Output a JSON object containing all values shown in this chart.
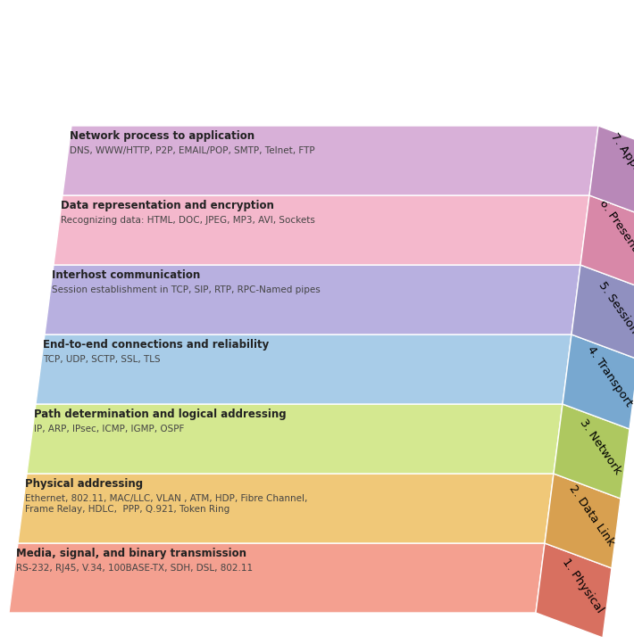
{
  "layers": [
    {
      "number": 1,
      "name": "Physical",
      "title": "Media, signal, and binary transmission",
      "subtitle": "RS-232, RJ45, V.34, 100BASE-TX, SDH, DSL, 802.11",
      "face_color": "#f4a090",
      "side_color": "#d87060",
      "text_color": "#222222"
    },
    {
      "number": 2,
      "name": "Data Link",
      "title": "Physical addressing",
      "subtitle": "Ethernet, 802.11, MAC/LLC, VLAN , ATM, HDP, Fibre Channel,\nFrame Relay, HDLC,  PPP, Q.921, Token Ring",
      "face_color": "#f0c878",
      "side_color": "#d8a050",
      "text_color": "#222222"
    },
    {
      "number": 3,
      "name": "Network",
      "title": "Path determination and logical addressing",
      "subtitle": "IP, ARP, IPsec, ICMP, IGMP, OSPF",
      "face_color": "#d4e890",
      "side_color": "#aec860",
      "text_color": "#222222"
    },
    {
      "number": 4,
      "name": "Transport",
      "title": "End-to-end connections and reliability",
      "subtitle": "TCP, UDP, SCTP, SSL, TLS",
      "face_color": "#a8cce8",
      "side_color": "#78a8d0",
      "text_color": "#222222"
    },
    {
      "number": 5,
      "name": "Session",
      "title": "Interhost communication",
      "subtitle": "Session establishment in TCP, SIP, RTP, RPC-Named pipes",
      "face_color": "#b8b0e0",
      "side_color": "#9090c0",
      "text_color": "#222222"
    },
    {
      "number": 6,
      "name": "Presentation",
      "title": "Data representation and encryption",
      "subtitle": "Recognizing data: HTML, DOC, JPEG, MP3, AVI, Sockets",
      "face_color": "#f4b8cc",
      "side_color": "#d888a8",
      "text_color": "#222222"
    },
    {
      "number": 7,
      "name": "Application",
      "title": "Network process to application",
      "subtitle": "DNS, WWW/HTTP, P2P, EMAIL/POP, SMTP, Telnet, FTP",
      "face_color": "#d8b0d8",
      "side_color": "#b888b8",
      "text_color": "#222222"
    }
  ],
  "background_color": "#ffffff"
}
